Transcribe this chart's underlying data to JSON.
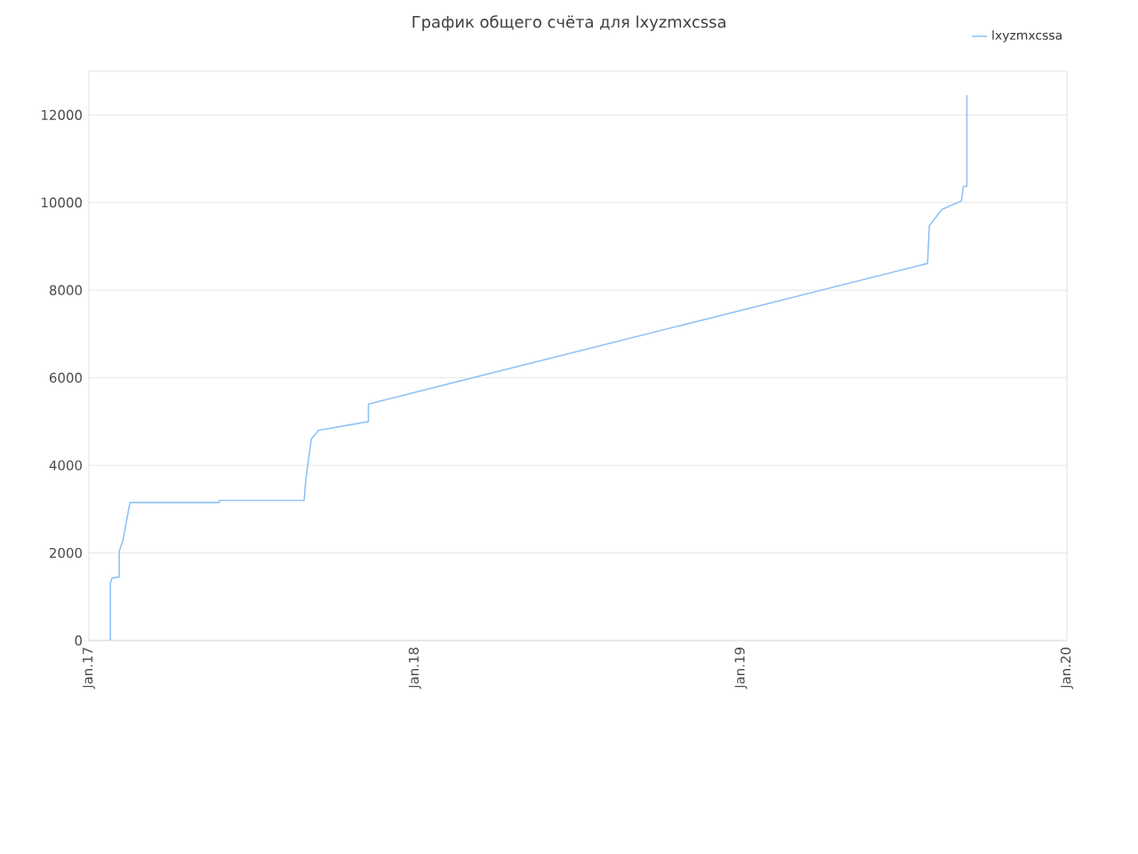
{
  "chart_data": {
    "type": "line",
    "title": "График общего счёта для lxyzmxcssa",
    "x": [
      "2017-01-25",
      "2017-01-25",
      "2017-01-27",
      "2017-02-04",
      "2017-02-04",
      "2017-02-08",
      "2017-02-16",
      "2017-05-27",
      "2017-05-27",
      "2017-08-30",
      "2017-09-01",
      "2017-09-07",
      "2017-09-15",
      "2017-11-10",
      "2017-11-10",
      "2019-07-29",
      "2019-07-31",
      "2019-08-14",
      "2019-09-05",
      "2019-09-07",
      "2019-09-11",
      "2019-09-11"
    ],
    "series": [
      {
        "name": "lxyzmxcssa",
        "color": "#90c3f5",
        "values": [
          0,
          1300,
          1430,
          1450,
          2040,
          2280,
          3150,
          3150,
          3200,
          3200,
          3700,
          4600,
          4800,
          5000,
          5400,
          8610,
          9470,
          9840,
          10040,
          10370,
          10370,
          12450
        ]
      }
    ],
    "xlim": [
      "2017-01-01",
      "2020-01-01"
    ],
    "xticks": [
      {
        "value": "2017-01-01",
        "label": "Jan.17"
      },
      {
        "value": "2018-01-01",
        "label": "Jan.18"
      },
      {
        "value": "2019-01-01",
        "label": "Jan.19"
      },
      {
        "value": "2020-01-01",
        "label": "Jan.20"
      }
    ],
    "ylim": [
      0,
      13000
    ],
    "yticks": [
      0,
      2000,
      4000,
      6000,
      8000,
      10000,
      12000
    ],
    "grid": "y",
    "legend": "top right",
    "marker": "none",
    "line_style": "solid"
  }
}
